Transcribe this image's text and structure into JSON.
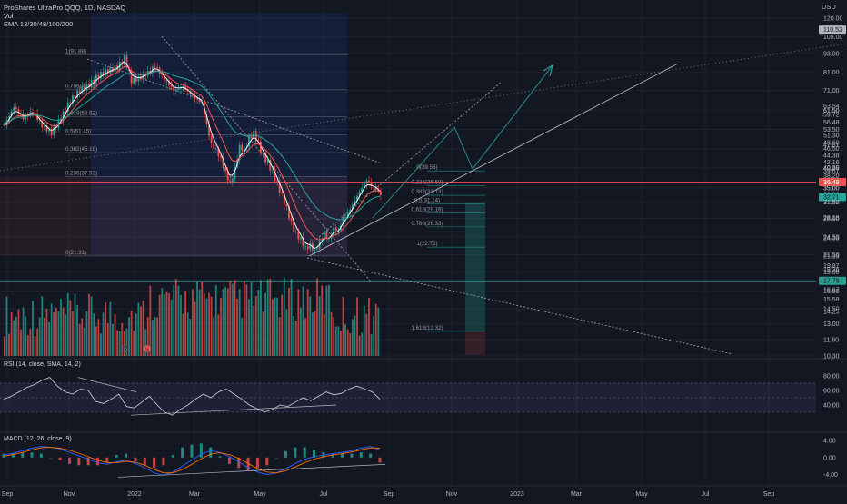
{
  "header": {
    "title": "ProShares UltraPro QQQ, 1D, NASDAQ",
    "volume_label": "Vol",
    "ema_label": "EMA 13/30/48/100/200",
    "currency": "USD"
  },
  "colors": {
    "background": "#131722",
    "grid": "#1e222d",
    "axis_text": "#b2b5be",
    "up": "#26a69a",
    "down": "#ef5350",
    "ema_fast": "#ffffff",
    "ema_mid": "#ef5350",
    "ema_slow": "#26a69a",
    "fib_line": "#787b86",
    "rsi_band": "#7e57c2",
    "macd_line": "#2962ff",
    "signal_line": "#ff6d00"
  },
  "chart_data": [
    {
      "type": "candlestick",
      "title": "ProShares UltraPro QQQ, 1D, NASDAQ",
      "x_ticks": [
        "Sep",
        "Nov",
        "2022",
        "Mar",
        "May",
        "Jul",
        "Sep",
        "Nov",
        "2023",
        "Mar",
        "May",
        "Jul",
        "Sep"
      ],
      "y_scale": "log",
      "ylim": [
        10.3,
        125
      ],
      "y_ticks": [
        120.0,
        105.0,
        93.0,
        81.0,
        71.0,
        61.5,
        53.5,
        46.5,
        40.5,
        35.0,
        31.5,
        28.0,
        24.5,
        21.5,
        19.0,
        16.5,
        14.5,
        13.0,
        11.6,
        10.3
      ],
      "y_tick_labels": [
        "120.00",
        "105.00",
        "93.00",
        "81.00",
        "71.00",
        "61.50",
        "53.50",
        "46.50",
        "40.50",
        "35.00",
        "31.50",
        "28.00",
        "24.50",
        "21.50",
        "19.00",
        "16.50",
        "14.50",
        "13.00",
        "11.60",
        "10.30"
      ],
      "price_labels": [
        {
          "text": "110.52",
          "value": 110.52,
          "bg": "#b2b5be",
          "fg": "#131722"
        },
        {
          "text": "63.54",
          "value": 63.54
        },
        {
          "text": "61.50",
          "value": 61.5
        },
        {
          "text": "59.72",
          "value": 59.72
        },
        {
          "text": "56.48",
          "value": 56.48
        },
        {
          "text": "51.30",
          "value": 51.3
        },
        {
          "text": "48.60",
          "value": 48.6
        },
        {
          "text": "47.81",
          "value": 47.81
        },
        {
          "text": "44.38",
          "value": 44.38
        },
        {
          "text": "42.16",
          "value": 42.16
        },
        {
          "text": "40.45",
          "value": 40.45
        },
        {
          "text": "39.67",
          "value": 39.67
        },
        {
          "text": "38.20",
          "value": 38.2
        },
        {
          "text": "36.49",
          "value": 36.49,
          "bg": "#ef5350",
          "fg": "#ffffff"
        },
        {
          "text": "35.00",
          "value": 35.0
        },
        {
          "text": "33.36",
          "value": 33.36
        },
        {
          "text": "32.71",
          "value": 32.71,
          "bg": "#26a69a",
          "fg": "#131722"
        },
        {
          "text": "31.52",
          "value": 31.52
        },
        {
          "text": "28.18",
          "value": 28.18
        },
        {
          "text": "24.33",
          "value": 24.33
        },
        {
          "text": "21.33",
          "value": 21.33
        },
        {
          "text": "19.87",
          "value": 19.87
        },
        {
          "text": "19.36",
          "value": 19.36
        },
        {
          "text": "17.79",
          "value": 17.79,
          "bg": "#2a9d8f",
          "fg": "#131722"
        },
        {
          "text": "16.67",
          "value": 16.67
        },
        {
          "text": "15.58",
          "value": 15.58
        },
        {
          "text": "14.25",
          "value": 14.25
        }
      ],
      "fib_left": [
        {
          "label": "1(91.88)",
          "value": 91.88
        },
        {
          "label": "0.786(71.43)",
          "value": 71.43
        },
        {
          "label": "0.618(58.62)",
          "value": 58.62
        },
        {
          "label": "0.5(51.45)",
          "value": 51.45
        },
        {
          "label": "0.382(45.19)",
          "value": 45.19
        },
        {
          "label": "0.236(37.93)",
          "value": 37.93
        },
        {
          "label": "0(21.31)",
          "value": 21.31
        }
      ],
      "fib_right": [
        {
          "label": "0(39.56)",
          "value": 39.56
        },
        {
          "label": "0.236(35.58)",
          "value": 35.58
        },
        {
          "label": "0.382(33.13)",
          "value": 33.13
        },
        {
          "label": "0.5(31.14)",
          "value": 31.14
        },
        {
          "label": "0.618(29.16)",
          "value": 29.16
        },
        {
          "label": "0.786(26.33)",
          "value": 26.33
        },
        {
          "label": "1(22.72)",
          "value": 22.72
        },
        {
          "label": "1.618(12.32)",
          "value": 12.32
        }
      ],
      "horizontal_levels": [
        36.49,
        17.79
      ],
      "markers": [
        "D",
        "S"
      ],
      "path": [
        [
          0,
          55
        ],
        [
          4,
          63
        ],
        [
          8,
          58
        ],
        [
          12,
          61
        ],
        [
          16,
          55
        ],
        [
          20,
          52
        ],
        [
          24,
          58
        ],
        [
          28,
          66
        ],
        [
          32,
          71
        ],
        [
          36,
          74
        ],
        [
          40,
          79
        ],
        [
          44,
          82
        ],
        [
          48,
          84
        ],
        [
          51,
          90
        ],
        [
          54,
          76
        ],
        [
          58,
          78
        ],
        [
          62,
          82
        ],
        [
          64,
          85
        ],
        [
          68,
          77
        ],
        [
          72,
          71
        ],
        [
          76,
          73
        ],
        [
          80,
          68
        ],
        [
          84,
          65
        ],
        [
          86,
          55
        ],
        [
          88,
          48
        ],
        [
          90,
          46
        ],
        [
          92,
          43
        ],
        [
          94,
          39
        ],
        [
          96,
          36
        ],
        [
          98,
          40
        ],
        [
          100,
          47
        ],
        [
          102,
          46
        ],
        [
          104,
          50
        ],
        [
          106,
          52
        ],
        [
          108,
          48
        ],
        [
          110,
          44
        ],
        [
          112,
          42
        ],
        [
          114,
          39
        ],
        [
          116,
          36
        ],
        [
          118,
          33
        ],
        [
          120,
          30
        ],
        [
          122,
          27
        ],
        [
          124,
          25
        ],
        [
          126,
          24
        ],
        [
          128,
          22.5
        ],
        [
          130,
          23
        ],
        [
          132,
          22
        ],
        [
          134,
          23.5
        ],
        [
          136,
          25
        ],
        [
          138,
          24
        ],
        [
          140,
          26
        ],
        [
          142,
          25.5
        ],
        [
          144,
          28
        ],
        [
          146,
          29
        ],
        [
          148,
          31
        ],
        [
          150,
          33
        ],
        [
          152,
          35
        ],
        [
          154,
          37
        ],
        [
          156,
          35.5
        ],
        [
          158,
          34.8
        ],
        [
          160,
          33.36
        ]
      ]
    },
    {
      "type": "bar",
      "title": "Vol",
      "note": "volume histogram, relative heights"
    },
    {
      "type": "line",
      "title": "RSI (14, close, SMA, 14, 2)",
      "ylim": [
        20,
        85
      ],
      "y_ticks": [
        80.0,
        60.0,
        40.0
      ],
      "y_tick_labels": [
        "80.00",
        "60.00",
        "40.00"
      ],
      "band": [
        30,
        70
      ],
      "series": [
        {
          "name": "",
          "values": [
            48,
            52,
            58,
            64,
            68,
            74,
            78,
            66,
            58,
            55,
            62,
            60,
            45,
            42,
            48,
            55,
            38,
            36,
            44,
            52,
            40,
            30,
            26,
            34,
            40,
            48,
            55,
            50,
            58,
            62,
            55,
            48,
            40,
            35,
            30,
            34,
            40,
            38,
            44,
            50,
            46,
            52,
            58,
            54,
            56,
            62,
            66,
            62,
            58,
            48
          ]
        }
      ]
    },
    {
      "type": "line",
      "title": "MACD (12, 26, close, 9)",
      "ylim": [
        -6,
        5.5
      ],
      "y_ticks": [
        4.0,
        0.0,
        -4.0
      ],
      "y_tick_labels": [
        "4.00",
        "0.00",
        "-4.00"
      ],
      "series": [
        {
          "name": "",
          "values": [
            0.6,
            1.0,
            1.6,
            2.2,
            2.6,
            2.4,
            2.0,
            1.2,
            0.4,
            -0.4,
            -1.2,
            -1.6,
            -1.0,
            -0.6,
            -1.4,
            -2.4,
            -3.6,
            -4.2,
            -3.4,
            -2.0,
            -0.6,
            0.8,
            1.6,
            1.2,
            0.2,
            -1.0,
            -2.4,
            -3.4,
            -4.0,
            -3.6,
            -2.6,
            -1.4,
            -0.4,
            0.2,
            0.6,
            0.9,
            1.2,
            1.6,
            2.2,
            2.6,
            1.8
          ]
        },
        {
          "name": "",
          "values": [
            0.3,
            0.7,
            1.2,
            1.8,
            2.3,
            2.4,
            2.2,
            1.7,
            1.0,
            0.2,
            -0.6,
            -1.2,
            -1.2,
            -0.9,
            -1.1,
            -1.8,
            -2.8,
            -3.6,
            -3.6,
            -2.8,
            -1.6,
            -0.3,
            0.8,
            1.1,
            0.7,
            -0.2,
            -1.4,
            -2.6,
            -3.4,
            -3.6,
            -3.1,
            -2.2,
            -1.2,
            -0.4,
            0.2,
            0.6,
            0.9,
            1.3,
            1.8,
            2.3,
            2.2
          ]
        }
      ]
    }
  ]
}
